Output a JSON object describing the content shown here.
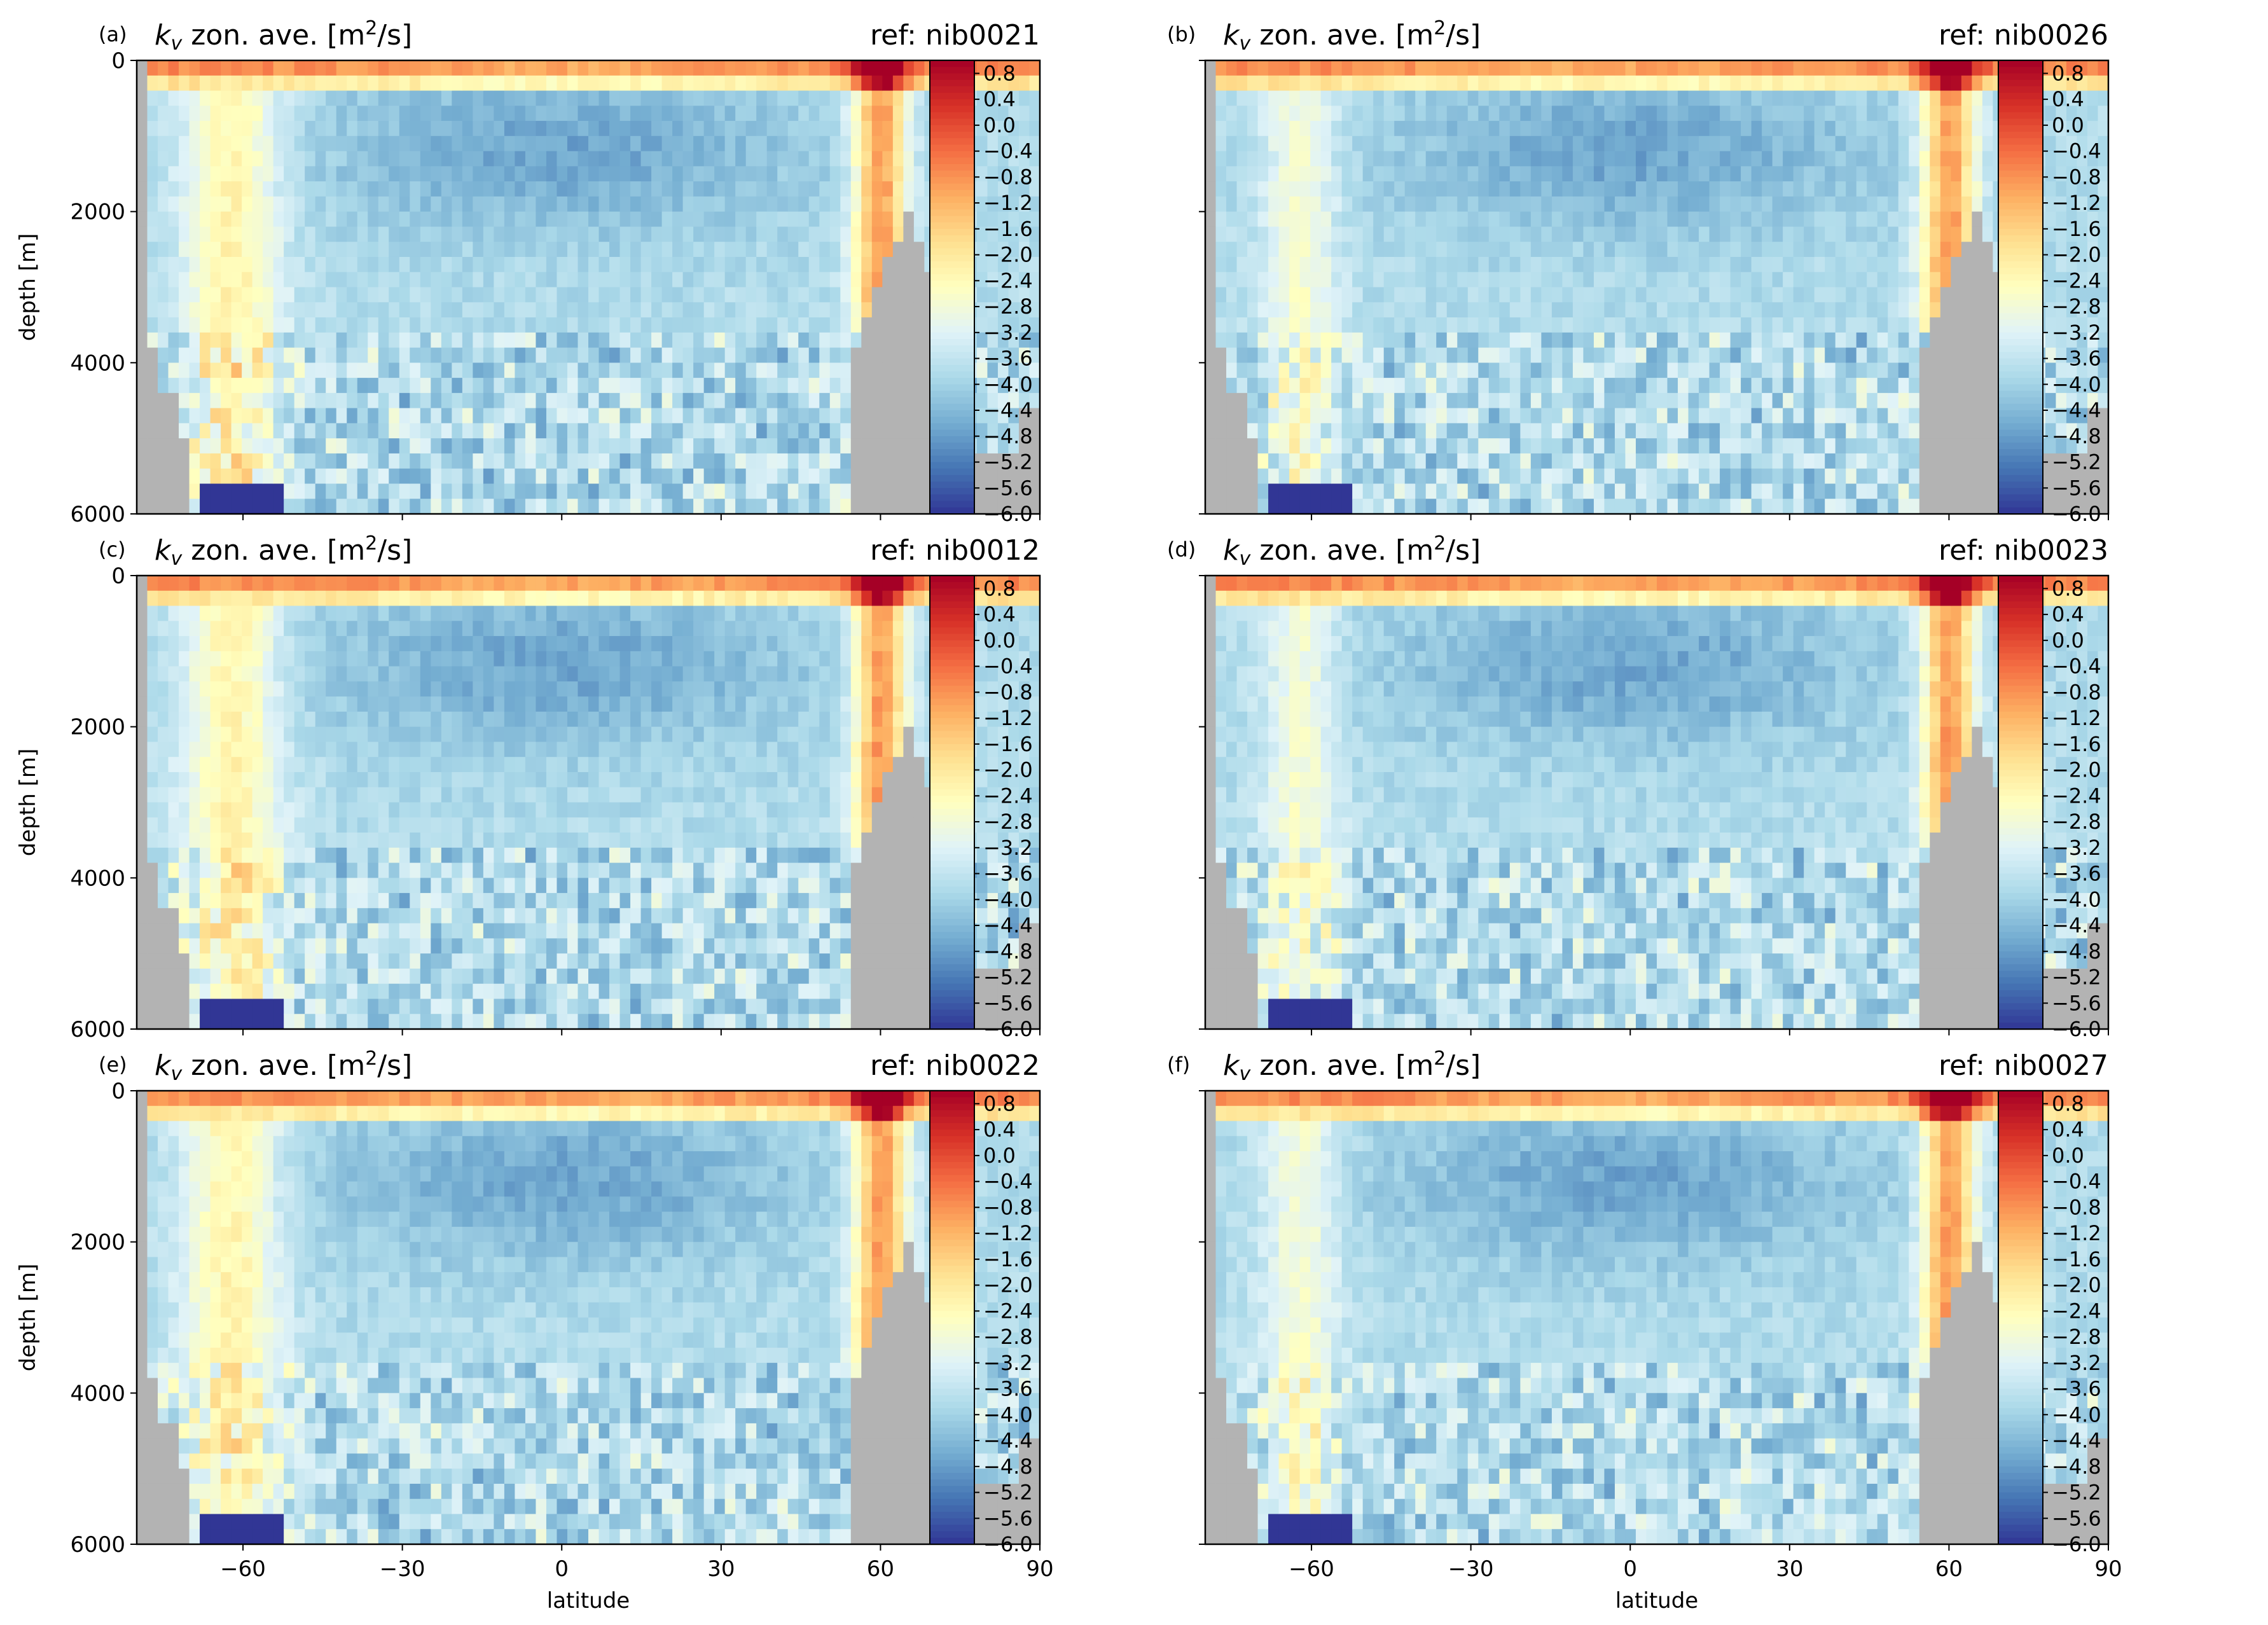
{
  "figure": {
    "panel_title_prefix": "k",
    "panel_title_sub": "v",
    "panel_title_mid": " zon. ave. [m",
    "panel_title_sup": "2",
    "panel_title_end": "/s]",
    "ylabel": "depth [m]",
    "xlabel": "latitude",
    "colors": {
      "land": "#b3b3b3",
      "colormap": [
        "#313695",
        "#4575b4",
        "#74add1",
        "#abd9e9",
        "#e0f3f8",
        "#ffffbf",
        "#fee090",
        "#fdae61",
        "#f46d43",
        "#d73027",
        "#a50026"
      ]
    }
  },
  "chart_data": [
    {
      "type": "heatmap",
      "panel": "(a)",
      "title": "k_v zon. ave. [m^2/s]",
      "ref": "ref: nib0021",
      "ylabel": "depth [m]",
      "xlabel": "",
      "xlim": [
        -80,
        90
      ],
      "ylim": [
        6000,
        0
      ],
      "yticks": [
        "0",
        "2000",
        "4000",
        "6000"
      ],
      "xticks": [
        -60,
        -30,
        0,
        30,
        60,
        90
      ],
      "xtick_labels_shown": false,
      "colorbar": {
        "vmin": -6.0,
        "vmax": 1.0,
        "ticks": [
          "0.8",
          "0.4",
          "0.0",
          "−0.4",
          "−0.8",
          "−1.2",
          "−1.6",
          "−2.0",
          "−2.4",
          "−2.8",
          "−3.2",
          "−3.6",
          "−4.0",
          "−4.4",
          "−4.8",
          "−5.2",
          "−5.6",
          "−6.0"
        ]
      }
    },
    {
      "type": "heatmap",
      "panel": "(b)",
      "title": "k_v zon. ave. [m^2/s]",
      "ref": "ref: nib0026",
      "ylabel": "",
      "xlabel": "",
      "xlim": [
        -80,
        90
      ],
      "ylim": [
        6000,
        0
      ],
      "xticks": [
        -60,
        -30,
        0,
        30,
        60,
        90
      ],
      "xtick_labels_shown": false,
      "colorbar": {
        "vmin": -6.0,
        "vmax": 1.0,
        "ticks": [
          "0.8",
          "0.4",
          "0.0",
          "−0.4",
          "−0.8",
          "−1.2",
          "−1.6",
          "−2.0",
          "−2.4",
          "−2.8",
          "−3.2",
          "−3.6",
          "−4.0",
          "−4.4",
          "−4.8",
          "−5.2",
          "−5.6",
          "−6.0"
        ]
      }
    },
    {
      "type": "heatmap",
      "panel": "(c)",
      "title": "k_v zon. ave. [m^2/s]",
      "ref": "ref: nib0012",
      "ylabel": "depth [m]",
      "xlabel": "",
      "xlim": [
        -80,
        90
      ],
      "ylim": [
        6000,
        0
      ],
      "yticks": [
        "0",
        "2000",
        "4000",
        "6000"
      ],
      "xticks": [
        -60,
        -30,
        0,
        30,
        60,
        90
      ],
      "xtick_labels_shown": false,
      "colorbar": {
        "vmin": -6.0,
        "vmax": 1.0,
        "ticks": [
          "0.8",
          "0.4",
          "0.0",
          "−0.4",
          "−0.8",
          "−1.2",
          "−1.6",
          "−2.0",
          "−2.4",
          "−2.8",
          "−3.2",
          "−3.6",
          "−4.0",
          "−4.4",
          "−4.8",
          "−5.2",
          "−5.6",
          "−6.0"
        ]
      }
    },
    {
      "type": "heatmap",
      "panel": "(d)",
      "title": "k_v zon. ave. [m^2/s]",
      "ref": "ref: nib0023",
      "ylabel": "",
      "xlabel": "",
      "xlim": [
        -80,
        90
      ],
      "ylim": [
        6000,
        0
      ],
      "xticks": [
        -60,
        -30,
        0,
        30,
        60,
        90
      ],
      "xtick_labels_shown": false,
      "colorbar": {
        "vmin": -6.0,
        "vmax": 1.0,
        "ticks": [
          "0.8",
          "0.4",
          "0.0",
          "−0.4",
          "−0.8",
          "−1.2",
          "−1.6",
          "−2.0",
          "−2.4",
          "−2.8",
          "−3.2",
          "−3.6",
          "−4.0",
          "−4.4",
          "−4.8",
          "−5.2",
          "−5.6",
          "−6.0"
        ]
      }
    },
    {
      "type": "heatmap",
      "panel": "(e)",
      "title": "k_v zon. ave. [m^2/s]",
      "ref": "ref: nib0022",
      "ylabel": "depth [m]",
      "xlabel": "latitude",
      "xlim": [
        -80,
        90
      ],
      "ylim": [
        6000,
        0
      ],
      "yticks": [
        "0",
        "2000",
        "4000",
        "6000"
      ],
      "xticks": [
        -60,
        -30,
        0,
        30,
        60,
        90
      ],
      "xtick_labels": [
        "−60",
        "−30",
        "0",
        "30",
        "60",
        "90"
      ],
      "xtick_labels_shown": true,
      "colorbar": {
        "vmin": -6.0,
        "vmax": 1.0,
        "ticks": [
          "0.8",
          "0.4",
          "0.0",
          "−0.4",
          "−0.8",
          "−1.2",
          "−1.6",
          "−2.0",
          "−2.4",
          "−2.8",
          "−3.2",
          "−3.6",
          "−4.0",
          "−4.4",
          "−4.8",
          "−5.2",
          "−5.6",
          "−6.0"
        ]
      }
    },
    {
      "type": "heatmap",
      "panel": "(f)",
      "title": "k_v zon. ave. [m^2/s]",
      "ref": "ref: nib0027",
      "ylabel": "",
      "xlabel": "latitude",
      "xlim": [
        -80,
        90
      ],
      "ylim": [
        6000,
        0
      ],
      "xticks": [
        -60,
        -30,
        0,
        30,
        60,
        90
      ],
      "xtick_labels": [
        "−60",
        "−30",
        "0",
        "30",
        "60",
        "90"
      ],
      "xtick_labels_shown": true,
      "colorbar": {
        "vmin": -6.0,
        "vmax": 1.0,
        "ticks": [
          "0.8",
          "0.4",
          "0.0",
          "−0.4",
          "−0.8",
          "−1.2",
          "−1.6",
          "−2.0",
          "−2.4",
          "−2.8",
          "−3.2",
          "−3.6",
          "−4.0",
          "−4.4",
          "−4.8",
          "−5.2",
          "−5.6",
          "−6.0"
        ]
      }
    }
  ]
}
